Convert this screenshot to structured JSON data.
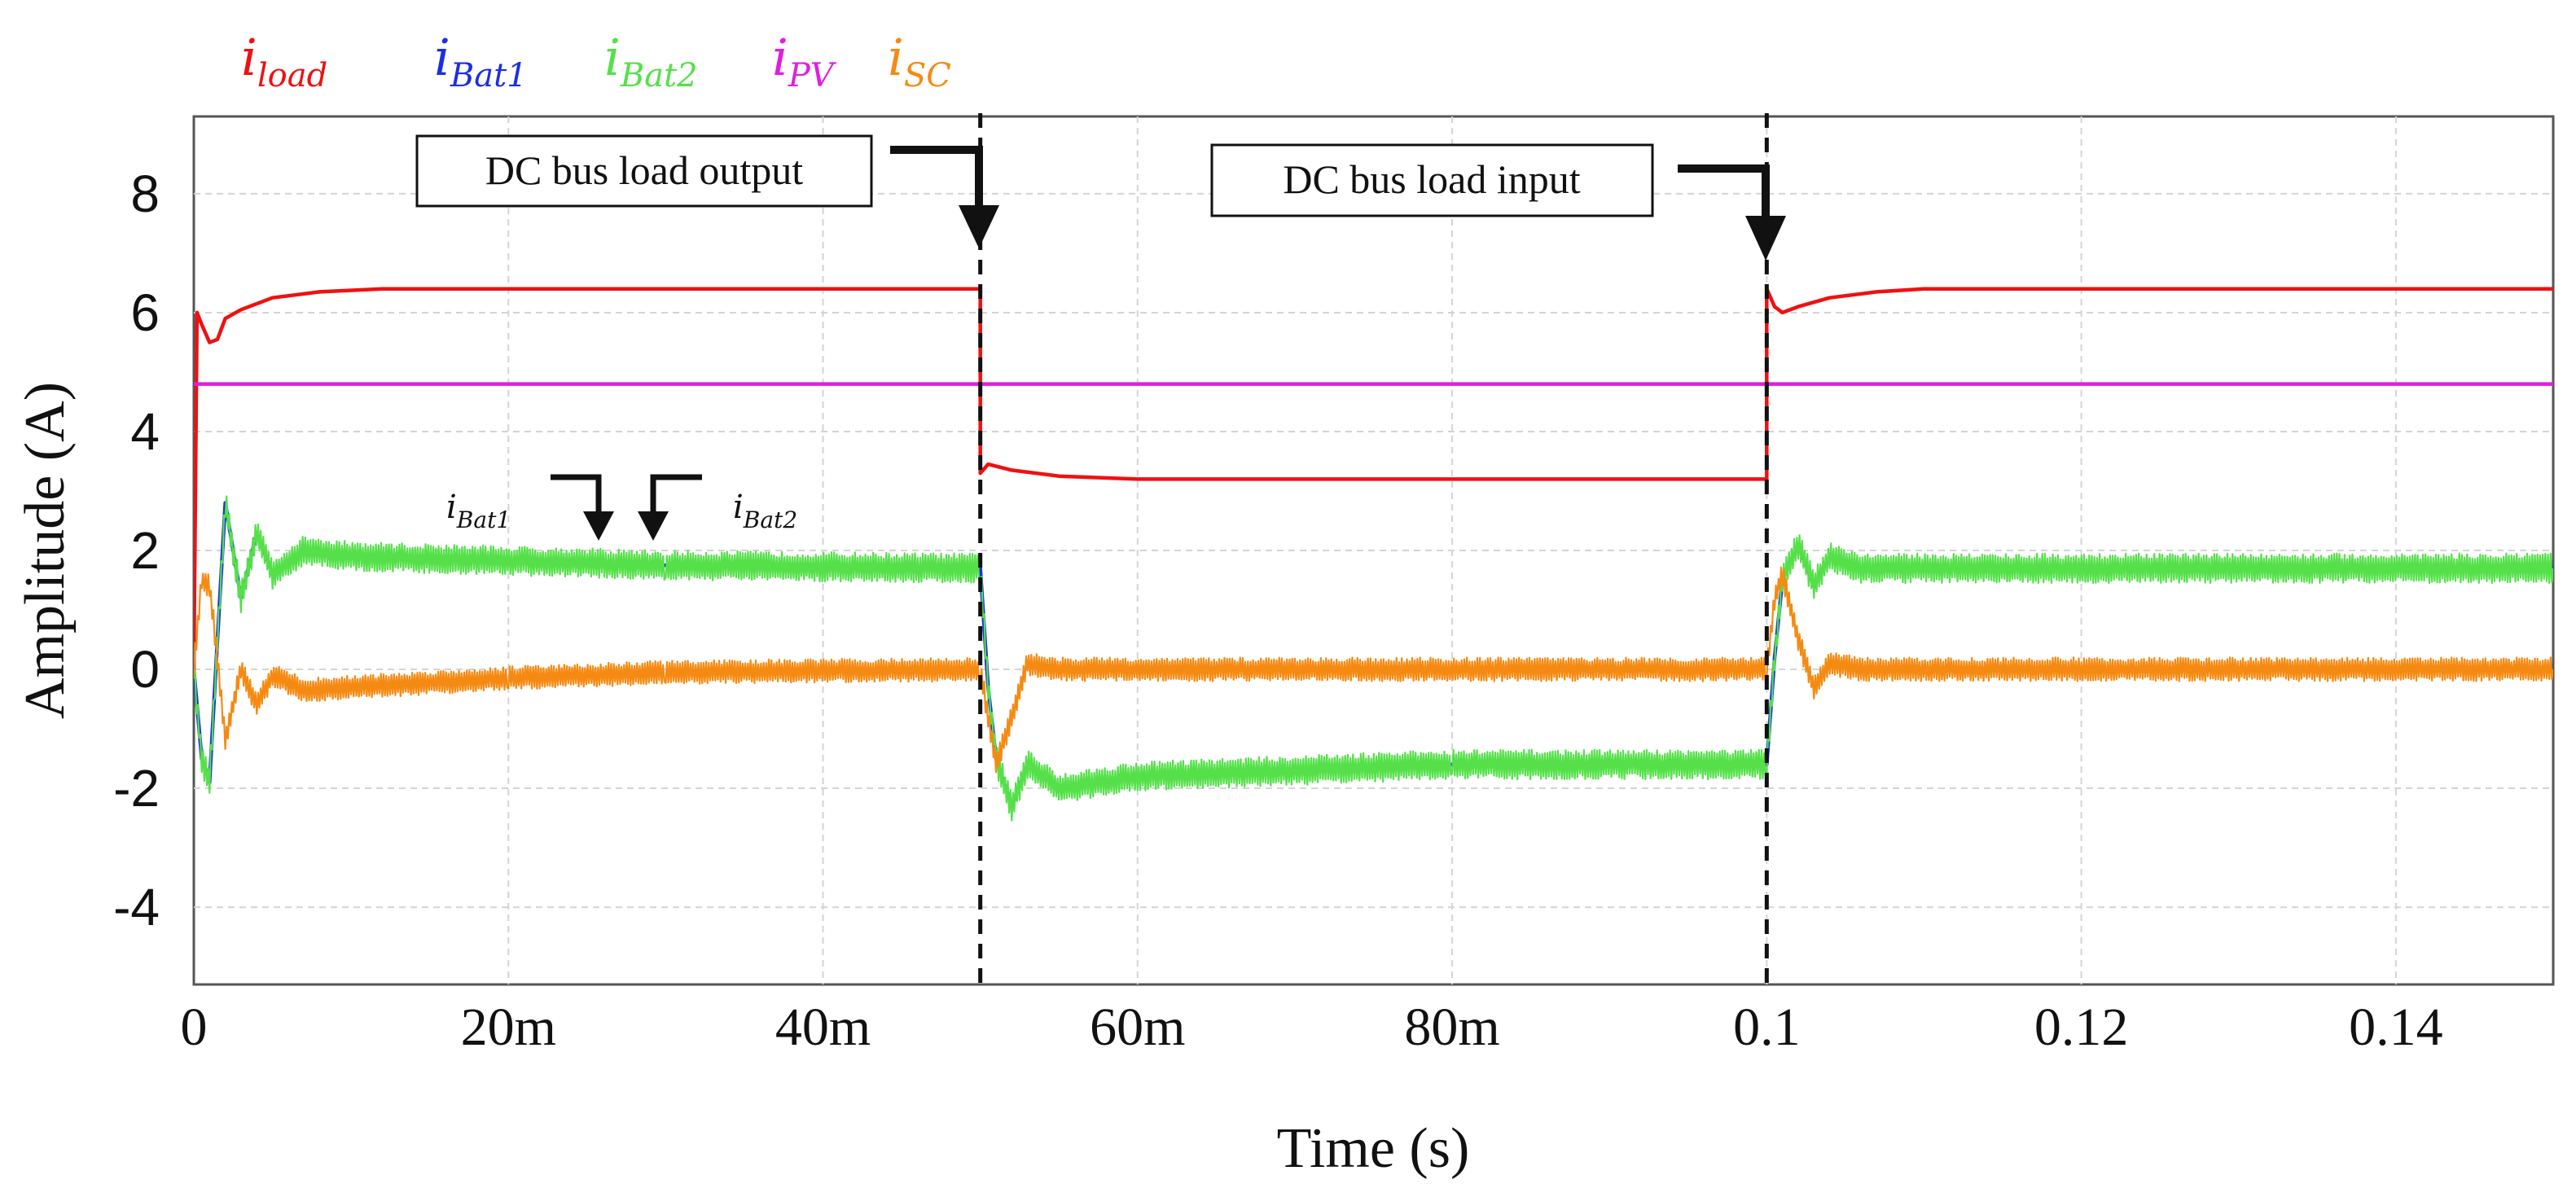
{
  "chart_data": {
    "type": "line",
    "title": "",
    "xlabel": "Time (s)",
    "ylabel": "Amplitude (A)",
    "xlim": [
      0,
      0.15
    ],
    "ylim": [
      -5.3,
      9.3
    ],
    "grid": true,
    "x_ticks": [
      {
        "value": 0,
        "label": "0"
      },
      {
        "value": 0.02,
        "label": "20m"
      },
      {
        "value": 0.04,
        "label": "40m"
      },
      {
        "value": 0.06,
        "label": "60m"
      },
      {
        "value": 0.08,
        "label": "80m"
      },
      {
        "value": 0.1,
        "label": "0.1"
      },
      {
        "value": 0.12,
        "label": "0.12"
      },
      {
        "value": 0.14,
        "label": "0.14"
      }
    ],
    "y_ticks": [
      {
        "value": 8,
        "label": "8"
      },
      {
        "value": 6,
        "label": "6"
      },
      {
        "value": 4,
        "label": "4"
      },
      {
        "value": 2,
        "label": "2"
      },
      {
        "value": 0,
        "label": "0"
      },
      {
        "value": -2,
        "label": "-2"
      },
      {
        "value": -4,
        "label": "-4"
      }
    ],
    "legend_position": "top-left outside",
    "legend": [
      {
        "key": "load",
        "main": "i",
        "sub": "load",
        "color": "#ee1111"
      },
      {
        "key": "bat1",
        "main": "i",
        "sub": "Bat1",
        "color": "#1b2fe0"
      },
      {
        "key": "bat2",
        "main": "i",
        "sub": "Bat2",
        "color": "#55e04a"
      },
      {
        "key": "pv",
        "main": "i",
        "sub": "PV",
        "color": "#e01ee0"
      },
      {
        "key": "sc",
        "main": "i",
        "sub": "SC",
        "color": "#f58a12"
      }
    ],
    "series": [
      {
        "name": "i_load",
        "color": "#ee1111",
        "points": [
          [
            0,
            0
          ],
          [
            0.0002,
            6.0
          ],
          [
            0.0005,
            5.8
          ],
          [
            0.001,
            5.5
          ],
          [
            0.0015,
            5.55
          ],
          [
            0.002,
            5.9
          ],
          [
            0.003,
            6.05
          ],
          [
            0.005,
            6.25
          ],
          [
            0.008,
            6.35
          ],
          [
            0.012,
            6.4
          ],
          [
            0.05,
            6.4
          ],
          [
            0.05,
            3.3
          ],
          [
            0.0505,
            3.45
          ],
          [
            0.052,
            3.35
          ],
          [
            0.055,
            3.25
          ],
          [
            0.06,
            3.2
          ],
          [
            0.1,
            3.2
          ],
          [
            0.1,
            6.4
          ],
          [
            0.1005,
            6.1
          ],
          [
            0.101,
            6.0
          ],
          [
            0.102,
            6.1
          ],
          [
            0.104,
            6.25
          ],
          [
            0.107,
            6.35
          ],
          [
            0.11,
            6.4
          ],
          [
            0.15,
            6.4
          ]
        ]
      },
      {
        "name": "i_PV",
        "color": "#e01ee0",
        "points": [
          [
            0,
            4.8
          ],
          [
            0.15,
            4.8
          ]
        ]
      },
      {
        "name": "i_Bat1",
        "color": "#1b2fe0",
        "points": [
          [
            0,
            0
          ],
          [
            0.0005,
            -1.5
          ],
          [
            0.001,
            -1.9
          ],
          [
            0.0015,
            0.5
          ],
          [
            0.002,
            2.8
          ],
          [
            0.003,
            1.2
          ],
          [
            0.004,
            2.3
          ],
          [
            0.005,
            1.6
          ],
          [
            0.007,
            2.0
          ],
          [
            0.01,
            1.9
          ],
          [
            0.03,
            1.75
          ],
          [
            0.05,
            1.7
          ],
          [
            0.0505,
            -0.3
          ],
          [
            0.051,
            -1.5
          ],
          [
            0.052,
            -2.3
          ],
          [
            0.053,
            -1.6
          ],
          [
            0.055,
            -2.0
          ],
          [
            0.06,
            -1.8
          ],
          [
            0.08,
            -1.6
          ],
          [
            0.1,
            -1.6
          ],
          [
            0.1005,
            0.2
          ],
          [
            0.101,
            1.5
          ],
          [
            0.102,
            2.1
          ],
          [
            0.103,
            1.4
          ],
          [
            0.104,
            1.9
          ],
          [
            0.106,
            1.7
          ],
          [
            0.15,
            1.7
          ]
        ]
      },
      {
        "name": "i_Bat2",
        "color": "#55e04a",
        "ripple": 0.25,
        "points": [
          [
            0,
            0
          ],
          [
            0.0005,
            -1.5
          ],
          [
            0.001,
            -1.9
          ],
          [
            0.0015,
            0.5
          ],
          [
            0.002,
            2.8
          ],
          [
            0.003,
            1.2
          ],
          [
            0.004,
            2.3
          ],
          [
            0.005,
            1.6
          ],
          [
            0.007,
            2.0
          ],
          [
            0.01,
            1.9
          ],
          [
            0.03,
            1.75
          ],
          [
            0.05,
            1.7
          ],
          [
            0.0505,
            -0.3
          ],
          [
            0.051,
            -1.5
          ],
          [
            0.052,
            -2.3
          ],
          [
            0.053,
            -1.6
          ],
          [
            0.055,
            -2.0
          ],
          [
            0.06,
            -1.8
          ],
          [
            0.08,
            -1.6
          ],
          [
            0.1,
            -1.6
          ],
          [
            0.1005,
            0.2
          ],
          [
            0.101,
            1.5
          ],
          [
            0.102,
            2.1
          ],
          [
            0.103,
            1.4
          ],
          [
            0.104,
            1.9
          ],
          [
            0.106,
            1.7
          ],
          [
            0.15,
            1.7
          ]
        ]
      },
      {
        "name": "i_SC",
        "color": "#f58a12",
        "ripple": 0.2,
        "points": [
          [
            0,
            0
          ],
          [
            0.0005,
            1.5
          ],
          [
            0.001,
            1.4
          ],
          [
            0.0015,
            0.2
          ],
          [
            0.002,
            -1.2
          ],
          [
            0.003,
            0.0
          ],
          [
            0.004,
            -0.6
          ],
          [
            0.005,
            -0.1
          ],
          [
            0.007,
            -0.35
          ],
          [
            0.01,
            -0.3
          ],
          [
            0.02,
            -0.15
          ],
          [
            0.03,
            -0.05
          ],
          [
            0.05,
            0.0
          ],
          [
            0.0505,
            -0.8
          ],
          [
            0.051,
            -1.6
          ],
          [
            0.052,
            -0.8
          ],
          [
            0.053,
            0.1
          ],
          [
            0.055,
            0.0
          ],
          [
            0.1,
            0.0
          ],
          [
            0.1005,
            1.2
          ],
          [
            0.101,
            1.6
          ],
          [
            0.102,
            0.5
          ],
          [
            0.103,
            -0.3
          ],
          [
            0.104,
            0.1
          ],
          [
            0.106,
            0.0
          ],
          [
            0.15,
            0.0
          ]
        ]
      }
    ],
    "markers": [
      {
        "x": 0.05,
        "style": "dashed"
      },
      {
        "x": 0.1,
        "style": "dashed"
      }
    ],
    "annotations": {
      "box_output": "DC bus load output",
      "box_input": "DC bus load input",
      "label_bat1": {
        "main": "i",
        "sub": "Bat1"
      },
      "label_bat2": {
        "main": "i",
        "sub": "Bat2"
      }
    }
  }
}
